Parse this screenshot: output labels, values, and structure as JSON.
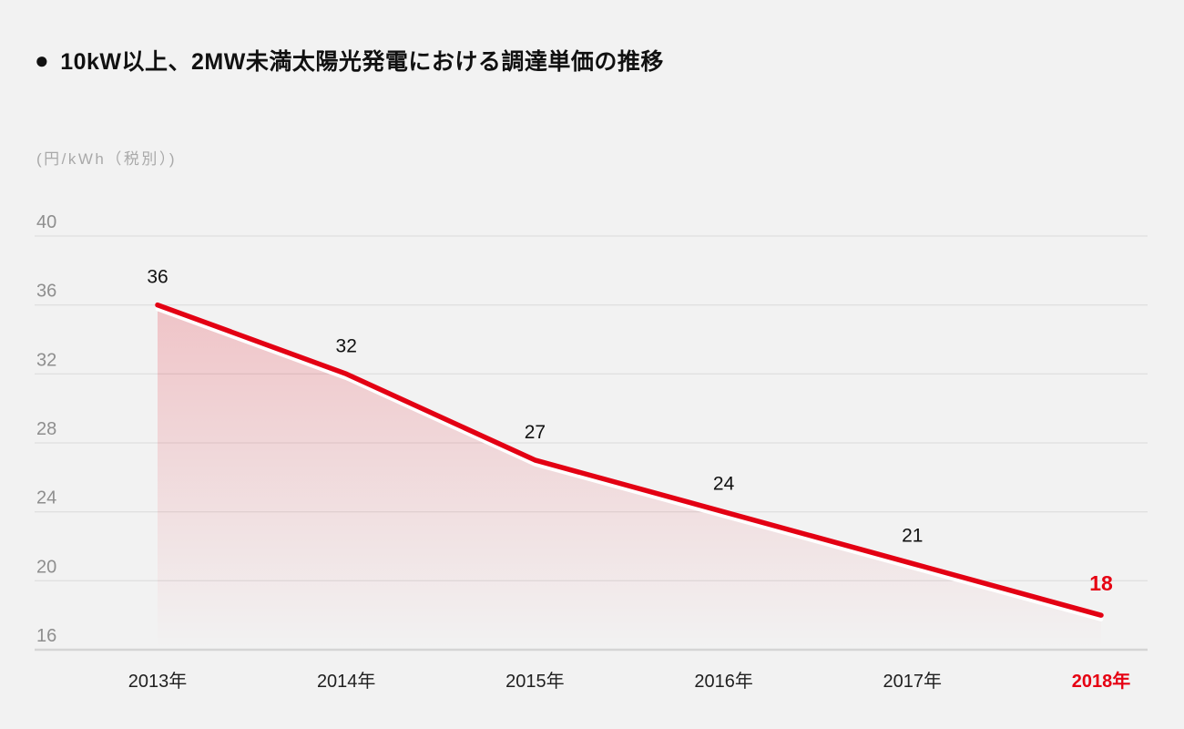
{
  "header": {
    "bullet": "●",
    "title": "10kW以上、2MW未満太陽光発電における調達単価の推移"
  },
  "chart_data": {
    "type": "area",
    "title": "10kW以上、2MW未満太陽光発電における調達単価の推移",
    "unit_label": "(円/kWh（税別）)",
    "categories": [
      "2013年",
      "2014年",
      "2015年",
      "2016年",
      "2017年",
      "2018年"
    ],
    "values": [
      36,
      32,
      27,
      24,
      21,
      18
    ],
    "point_labels": [
      "36",
      "32",
      "27",
      "24",
      "21",
      "18"
    ],
    "yticks": [
      40,
      36,
      32,
      28,
      24,
      20,
      16
    ],
    "ylim": [
      16,
      40
    ],
    "xlabel": "",
    "ylabel": "円/kWh（税別）",
    "grid": true,
    "legend": "none",
    "highlight_index": 5,
    "colors": {
      "background": "#f2f2f2",
      "line": "#e30013",
      "line_underlay": "#ffffff",
      "area_top": "rgba(227,0,19,0.19)",
      "area_bottom": "rgba(227,0,19,0)",
      "highlight": "#e60012",
      "grid": "#e0e0e0",
      "axis": "#d5d5d5",
      "tick_text": "#8e8e8e",
      "x_text": "#1f1f1f",
      "point_label_text": "#111111",
      "title_text": "#111111",
      "unit_text": "#a9a9a9"
    }
  }
}
